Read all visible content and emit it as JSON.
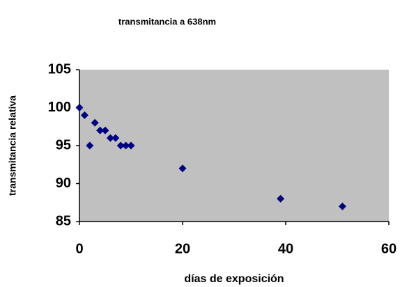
{
  "chart_data": {
    "type": "scatter",
    "title": "transmitancia a 638nm",
    "xlabel": "días de exposición",
    "ylabel": "transmitancia relativa",
    "x": [
      0,
      1,
      2,
      3,
      4,
      5,
      6,
      7,
      8,
      9,
      10,
      20,
      39,
      51
    ],
    "values": [
      100,
      99,
      95,
      98,
      97,
      97,
      96,
      96,
      95,
      95,
      95,
      92,
      88,
      87
    ],
    "color": "#000080",
    "background": "#c0c0c0",
    "xlim": [
      0,
      60
    ],
    "xticks": [
      0,
      20,
      40,
      60
    ],
    "ylim": [
      85,
      105
    ],
    "yticks": [
      85,
      90,
      95,
      100,
      105
    ],
    "grid": false
  }
}
